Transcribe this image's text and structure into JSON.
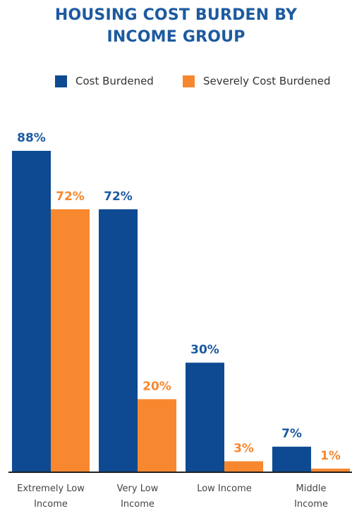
{
  "chart_data": {
    "type": "bar",
    "title_lines": [
      "HOUSING COST BURDEN BY",
      "INCOME GROUP"
    ],
    "categories": [
      [
        "Extremely Low",
        "Income"
      ],
      [
        "Very Low",
        "Income"
      ],
      [
        "Low Income"
      ],
      [
        "Middle",
        "Income"
      ]
    ],
    "series": [
      {
        "name": "Cost Burdened",
        "color": "#0d4a91",
        "values": [
          88,
          72,
          30,
          7
        ],
        "labels": [
          "88%",
          "72%",
          "30%",
          "7%"
        ]
      },
      {
        "name": "Severely Cost Burdened",
        "color": "#f7882f",
        "values": [
          72,
          20,
          3,
          1
        ],
        "labels": [
          "72%",
          "20%",
          "3%",
          "1%"
        ]
      }
    ],
    "legend_position": "top",
    "grid": false,
    "ylim": [
      0,
      100
    ]
  }
}
